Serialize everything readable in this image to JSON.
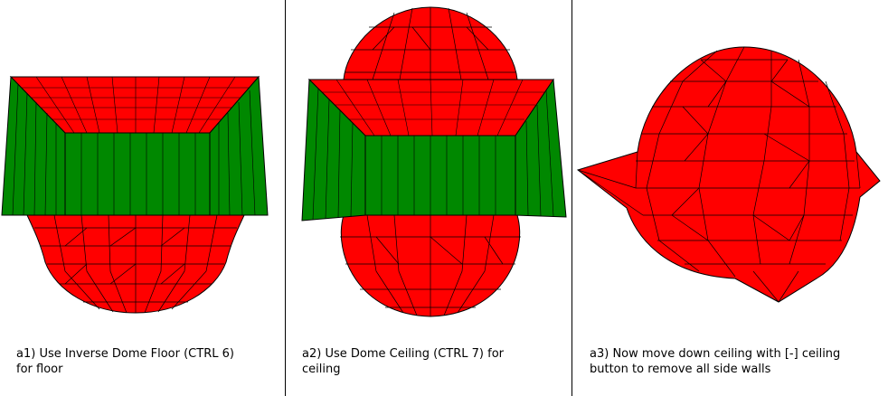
{
  "colors": {
    "ceiling": "#ff0000",
    "wall": "#008800",
    "edge": "#000000",
    "background": "#ffffff"
  },
  "panels": [
    {
      "id": "a1",
      "caption_line1": "a1) Use Inverse Dome Floor (CTRL 6)",
      "caption_line2": "for floor"
    },
    {
      "id": "a2",
      "caption_line1": "a2) Use Dome Ceiling (CTRL 7) for",
      "caption_line2": "ceiling"
    },
    {
      "id": "a3",
      "caption_line1": "a3) Now move down ceiling with [-] ceiling",
      "caption_line2": "button to remove all side walls"
    }
  ]
}
